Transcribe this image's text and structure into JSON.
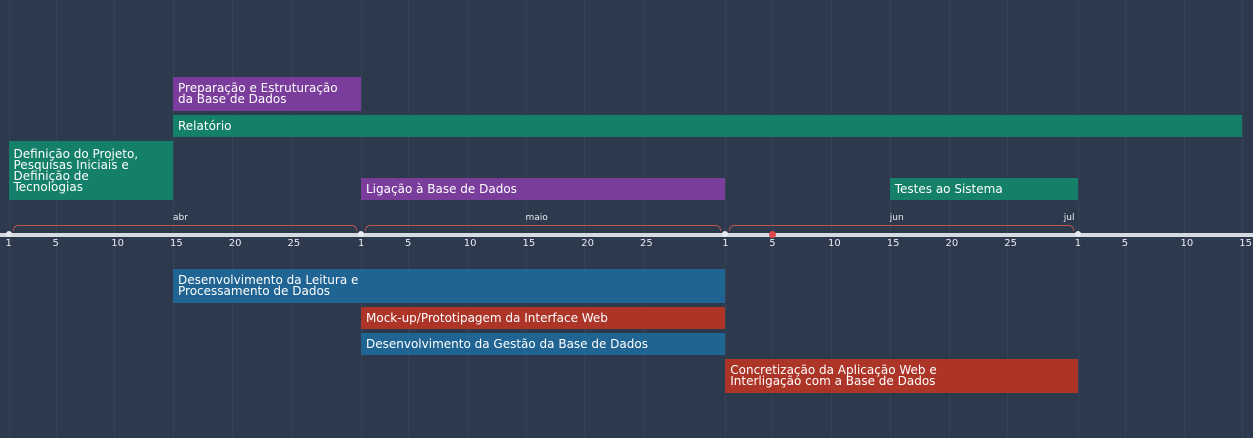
{
  "colors": {
    "background": "#2d3a4e",
    "green": "#14806a",
    "purple": "#7a3d9c",
    "blue": "#206493",
    "red": "#ad3528",
    "bracket": "#c0584a",
    "today": "#e0474c"
  },
  "months": [
    {
      "label": "abr",
      "start": "2024-04-01",
      "end": "2024-05-01"
    },
    {
      "label": "maio",
      "start": "2024-05-01",
      "end": "2024-06-01"
    },
    {
      "label": "jun",
      "start": "2024-06-01",
      "end": "2024-07-01"
    },
    {
      "label": "jul",
      "start": "2024-07-01",
      "end": "2024-07-16"
    }
  ],
  "tick_days": [
    "1",
    "5",
    "10",
    "15",
    "20",
    "25"
  ],
  "today": "2024-06-05",
  "tasks": [
    {
      "id": "preparacao",
      "label": "Preparação e Estruturação\n da Base de Dados",
      "start": "2024-04-15",
      "end": "2024-05-01",
      "color": "purple",
      "lane": 0
    },
    {
      "id": "relatorio",
      "label": "Relatório",
      "start": "2024-04-15",
      "end": "2024-07-15",
      "color": "green",
      "lane": 1
    },
    {
      "id": "definicao",
      "label": "Definição do Projeto,\nPesquisas Iniciais e\nDefinição de\nTecnologias",
      "start": "2024-04-01",
      "end": "2024-04-15",
      "color": "green",
      "lane": 2
    },
    {
      "id": "ligacao",
      "label": "Ligação à Base de Dados",
      "start": "2024-05-01",
      "end": "2024-06-01",
      "color": "purple",
      "lane": 3
    },
    {
      "id": "testes",
      "label": "Testes ao Sistema",
      "start": "2024-06-15",
      "end": "2024-07-01",
      "color": "green",
      "lane": 3
    },
    {
      "id": "leitura",
      "label": "Desenvolvimento da Leitura e\nProcessamento de Dados",
      "start": "2024-04-15",
      "end": "2024-06-01",
      "color": "blue",
      "lane": 4
    },
    {
      "id": "mockup",
      "label": "Mock-up/Prototipagem da Interface Web",
      "start": "2024-05-01",
      "end": "2024-06-01",
      "color": "red",
      "lane": 5
    },
    {
      "id": "gestao",
      "label": "Desenvolvimento da Gestão da Base de Dados",
      "start": "2024-05-01",
      "end": "2024-06-01",
      "color": "blue",
      "lane": 6
    },
    {
      "id": "concretizacao",
      "label": "Concretização da Aplicação Web e\nInterligação com a Base de Dados",
      "start": "2024-06-01",
      "end": "2024-07-01",
      "color": "red",
      "lane": 7
    }
  ]
}
